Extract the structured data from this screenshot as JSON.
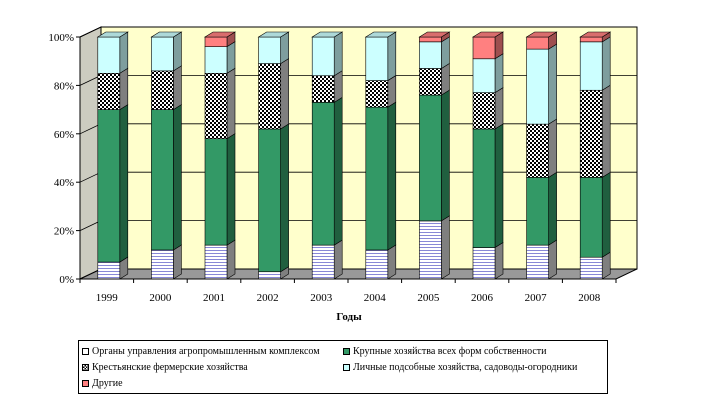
{
  "chart_data": {
    "type": "bar",
    "stacked": "percent",
    "categories": [
      "1999",
      "2000",
      "2001",
      "2002",
      "2003",
      "2004",
      "2005",
      "2006",
      "2007",
      "2008"
    ],
    "xlabel": "Годы",
    "ylabel": "",
    "ylim": [
      0,
      100
    ],
    "yticks": [
      "0%",
      "20%",
      "40%",
      "60%",
      "80%",
      "100%"
    ],
    "grid": true,
    "legend_position": "bottom",
    "series": [
      {
        "name": "Органы управления агропромышленным комплексом",
        "key": "s0",
        "color": "#ffffff",
        "pattern": "hlines",
        "values": [
          7,
          12,
          14,
          3,
          14,
          12,
          24,
          13,
          14,
          9
        ]
      },
      {
        "name": "Крупные хозяйства всех форм собственности",
        "key": "s1",
        "color": "#339966",
        "pattern": "solid",
        "values": [
          63,
          58,
          44,
          59,
          59,
          59,
          52,
          49,
          28,
          33
        ]
      },
      {
        "name": "Крестьянские фермерские хозяйства",
        "key": "s2",
        "color": "#ffffff",
        "pattern": "checker",
        "values": [
          15,
          16,
          27,
          27,
          11,
          11,
          11,
          15,
          22,
          36
        ]
      },
      {
        "name": "Личные подсобные хозяйства, садоводы-огородники",
        "key": "s3",
        "color": "#ccffff",
        "pattern": "solid",
        "values": [
          15,
          14,
          11,
          11,
          16,
          18,
          11,
          14,
          31,
          20
        ]
      },
      {
        "name": "Другие",
        "key": "s4",
        "color": "#ff8080",
        "pattern": "solid",
        "values": [
          0,
          0,
          4,
          0,
          0,
          0,
          2,
          9,
          5,
          2
        ]
      }
    ]
  }
}
